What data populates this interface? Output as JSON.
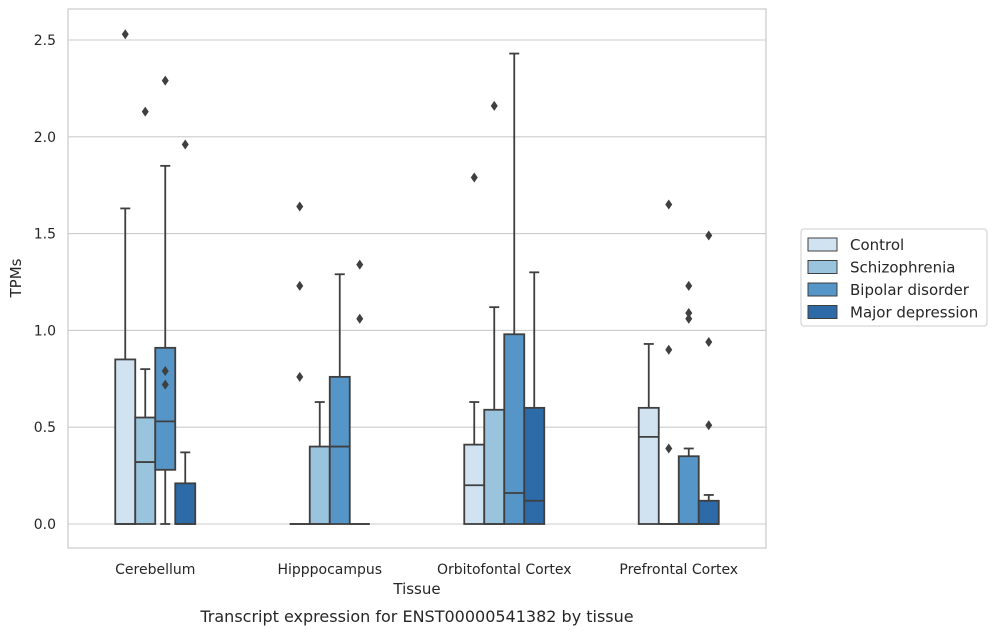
{
  "chart_data": {
    "type": "box",
    "title": "",
    "caption": "Transcript expression for ENST00000541382 by tissue",
    "xlabel": "Tissue",
    "ylabel": "TPMs",
    "ylim": [
      -0.12,
      2.65
    ],
    "yticks": [
      "0.0",
      "0.5",
      "1.0",
      "1.5",
      "2.0",
      "2.5"
    ],
    "grid": "horizontal",
    "legend_position": "right",
    "categories": [
      "Cerebellum",
      "Hipppocampus",
      "Orbitofontal Cortex",
      "Prefrontal Cortex"
    ],
    "series": [
      {
        "name": "Control",
        "color": "#d1e2f1",
        "boxes": [
          {
            "whislo": 0.0,
            "q1": 0.0,
            "med": 0.0,
            "q3": 0.85,
            "whishi": 1.63,
            "fliers": [
              2.53
            ]
          },
          {
            "whislo": 0.0,
            "q1": 0.0,
            "med": 0.0,
            "q3": 0.0,
            "whishi": 0.0,
            "fliers": [
              0.76,
              1.23,
              1.64
            ]
          },
          {
            "whislo": 0.0,
            "q1": 0.0,
            "med": 0.2,
            "q3": 0.41,
            "whishi": 0.63,
            "fliers": [
              1.79
            ]
          },
          {
            "whislo": 0.0,
            "q1": 0.0,
            "med": 0.45,
            "q3": 0.6,
            "whishi": 0.93,
            "fliers": []
          }
        ]
      },
      {
        "name": "Schizophrenia",
        "color": "#9ac3de",
        "boxes": [
          {
            "whislo": 0.0,
            "q1": 0.0,
            "med": 0.32,
            "q3": 0.55,
            "whishi": 0.8,
            "fliers": [
              2.13
            ]
          },
          {
            "whislo": 0.0,
            "q1": 0.0,
            "med": 0.0,
            "q3": 0.4,
            "whishi": 0.63,
            "fliers": []
          },
          {
            "whislo": 0.0,
            "q1": 0.0,
            "med": 0.0,
            "q3": 0.59,
            "whishi": 1.12,
            "fliers": [
              2.16
            ]
          },
          {
            "whislo": 0.0,
            "q1": 0.0,
            "med": 0.0,
            "q3": 0.0,
            "whishi": 0.0,
            "fliers": [
              0.39,
              0.9,
              1.65
            ]
          }
        ]
      },
      {
        "name": "Bipolar disorder",
        "color": "#5595c7",
        "boxes": [
          {
            "whislo": 0.0,
            "q1": 0.28,
            "med": 0.53,
            "q3": 0.91,
            "whishi": 1.85,
            "fliers": [
              0.72,
              0.79,
              2.29
            ]
          },
          {
            "whislo": 0.0,
            "q1": 0.0,
            "med": 0.4,
            "q3": 0.76,
            "whishi": 1.29,
            "fliers": []
          },
          {
            "whislo": 0.0,
            "q1": 0.0,
            "med": 0.16,
            "q3": 0.98,
            "whishi": 2.43,
            "fliers": []
          },
          {
            "whislo": 0.0,
            "q1": 0.0,
            "med": 0.0,
            "q3": 0.35,
            "whishi": 0.39,
            "fliers": [
              1.06,
              1.09,
              1.23
            ]
          }
        ]
      },
      {
        "name": "Major depression",
        "color": "#2d6aa8",
        "boxes": [
          {
            "whislo": 0.0,
            "q1": 0.0,
            "med": 0.0,
            "q3": 0.21,
            "whishi": 0.37,
            "fliers": [
              1.96
            ]
          },
          {
            "whislo": 0.0,
            "q1": 0.0,
            "med": 0.0,
            "q3": 0.0,
            "whishi": 0.0,
            "fliers": [
              1.06,
              1.34
            ]
          },
          {
            "whislo": 0.0,
            "q1": 0.0,
            "med": 0.12,
            "q3": 0.6,
            "whishi": 1.3,
            "fliers": []
          },
          {
            "whislo": 0.0,
            "q1": 0.0,
            "med": 0.0,
            "q3": 0.12,
            "whishi": 0.15,
            "fliers": [
              0.51,
              0.94,
              1.49
            ]
          }
        ]
      }
    ]
  }
}
